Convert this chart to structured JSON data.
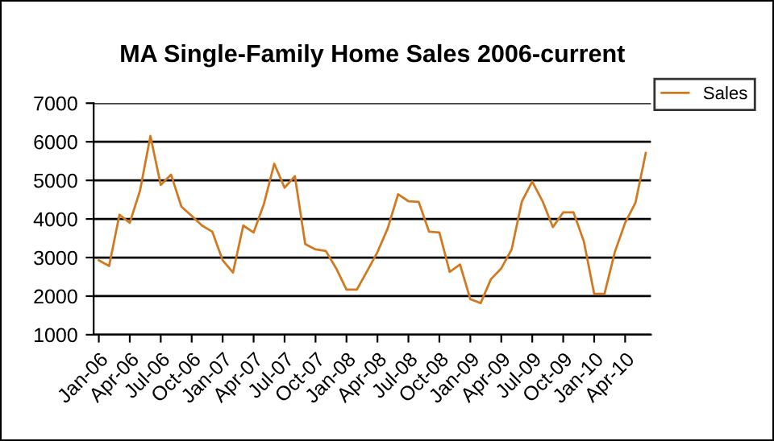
{
  "chart_data": {
    "type": "line",
    "title": "MA Single-Family Home Sales 2006-current",
    "categories": [
      "Jan-06",
      null,
      null,
      "Apr-06",
      null,
      null,
      "Jul-06",
      null,
      null,
      "Oct-06",
      null,
      null,
      "Jan-07",
      null,
      null,
      "Apr-07",
      null,
      null,
      "Jul-07",
      null,
      null,
      "Oct-07",
      null,
      null,
      "Jan-08",
      null,
      null,
      "Apr-08",
      null,
      null,
      "Jul-08",
      null,
      null,
      "Oct-08",
      null,
      null,
      "Jan-09",
      null,
      null,
      "Apr-09",
      null,
      null,
      "Jul-09",
      null,
      null,
      "Oct-09",
      null,
      null,
      "Jan-10",
      null,
      null,
      "Apr-10",
      null,
      null
    ],
    "series": [
      {
        "name": "Sales",
        "color": "#d2791f",
        "values": [
          2930,
          2780,
          4110,
          3900,
          4740,
          6150,
          4880,
          5150,
          4320,
          4080,
          3830,
          3670,
          2930,
          2610,
          3830,
          3650,
          4390,
          5430,
          4810,
          5110,
          3350,
          3210,
          3170,
          2720,
          2170,
          2170,
          2650,
          3140,
          3760,
          4640,
          4460,
          4440,
          3670,
          3650,
          2630,
          2820,
          1920,
          1820,
          2440,
          2720,
          3210,
          4460,
          4970,
          4460,
          3790,
          4170,
          4170,
          3420,
          2060,
          2060,
          3140,
          3900,
          4420,
          5710
        ]
      }
    ],
    "ylim": [
      1000,
      7000
    ],
    "yticks": [
      1000,
      2000,
      3000,
      4000,
      5000,
      6000,
      7000
    ],
    "grid": "y",
    "legend": "top right",
    "marker": "none",
    "line_style": "solid"
  }
}
